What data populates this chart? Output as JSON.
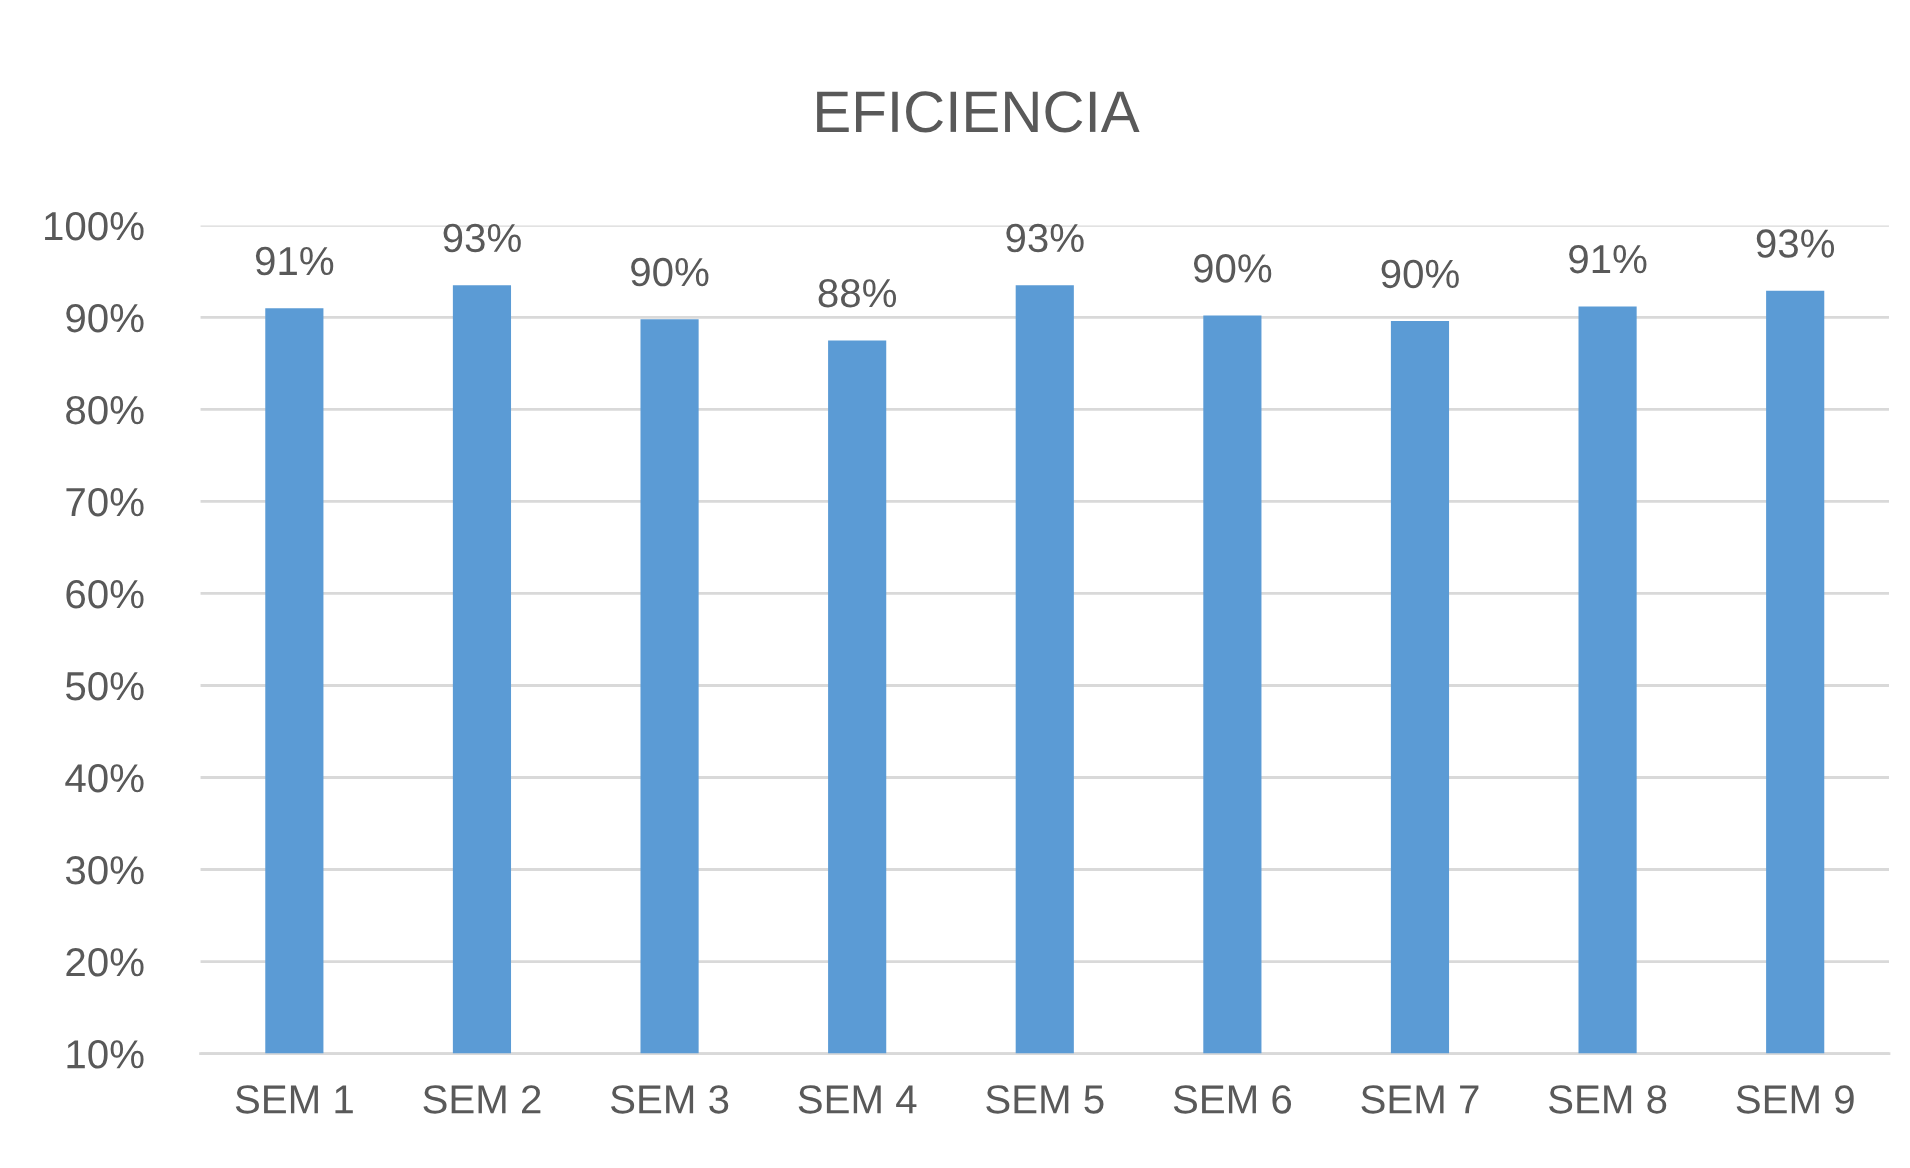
{
  "chart_data": {
    "type": "bar",
    "title": "EFICIENCIA",
    "categories": [
      "SEM 1",
      "SEM 2",
      "SEM 3",
      "SEM 4",
      "SEM 5",
      "SEM 6",
      "SEM 7",
      "SEM 8",
      "SEM 9"
    ],
    "values": [
      91.0,
      93.5,
      89.8,
      87.5,
      93.5,
      90.2,
      89.6,
      91.2,
      92.9
    ],
    "value_labels": [
      "91%",
      "93%",
      "90%",
      "88%",
      "93%",
      "90%",
      "90%",
      "91%",
      "93%"
    ],
    "color": "#5b9bd5",
    "ylim": [
      10,
      100
    ],
    "yticks": [
      {
        "value": 10,
        "label": "10%"
      },
      {
        "value": 20,
        "label": "20%"
      },
      {
        "value": 30,
        "label": "30%"
      },
      {
        "value": 40,
        "label": "40%"
      },
      {
        "value": 50,
        "label": "50%"
      },
      {
        "value": 60,
        "label": "60%"
      },
      {
        "value": 70,
        "label": "70%"
      },
      {
        "value": 80,
        "label": "80%"
      },
      {
        "value": 90,
        "label": "90%"
      },
      {
        "value": 100,
        "label": "100%"
      }
    ],
    "grid": "y"
  }
}
